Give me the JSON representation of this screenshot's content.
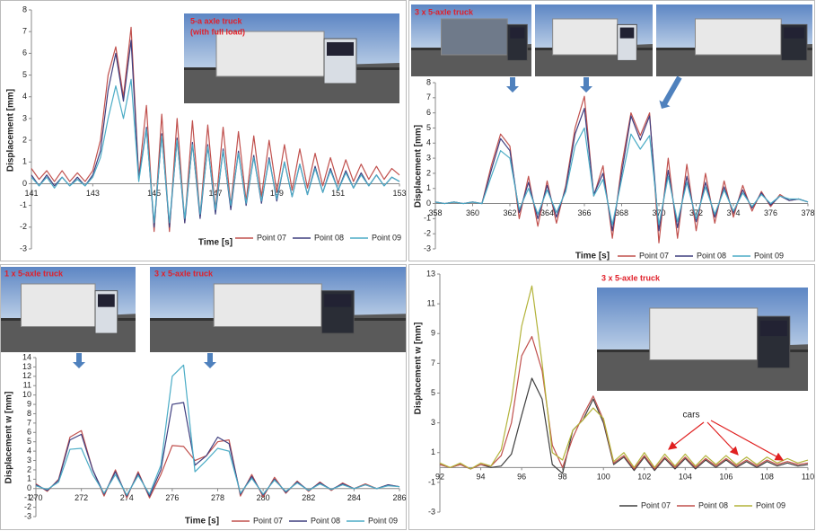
{
  "chart_data": [
    {
      "type": "line",
      "photo_captions": [
        "5-a axle truck",
        "(with full load)"
      ],
      "y_label": "Displacement [mm]",
      "x_label": "Time [s]",
      "xlim": [
        141,
        153
      ],
      "xticks": [
        141,
        143,
        145,
        147,
        149,
        151,
        153
      ],
      "ylim": [
        -3,
        8
      ],
      "yticks": [
        -3,
        -2,
        -1,
        0,
        1,
        2,
        3,
        4,
        5,
        6,
        7,
        8
      ],
      "x": [
        141,
        141.25,
        141.5,
        141.75,
        142,
        142.25,
        142.5,
        142.75,
        143,
        143.25,
        143.5,
        143.75,
        144,
        144.25,
        144.5,
        144.75,
        145,
        145.25,
        145.5,
        145.75,
        146,
        146.25,
        146.5,
        146.75,
        147,
        147.25,
        147.5,
        147.75,
        148,
        148.25,
        148.5,
        148.75,
        149,
        149.25,
        149.5,
        149.75,
        150,
        150.25,
        150.5,
        150.75,
        151,
        151.25,
        151.5,
        151.75,
        152,
        152.25,
        152.5,
        152.75,
        153
      ],
      "series": [
        {
          "name": "Point 07",
          "color": "#c0504d",
          "values": [
            0.7,
            0.2,
            0.6,
            0.1,
            0.6,
            0.1,
            0.5,
            0.1,
            0.6,
            2.0,
            5.0,
            6.3,
            4.0,
            7.2,
            0.3,
            3.6,
            -2.2,
            3.2,
            -2.2,
            3.0,
            -1.8,
            2.9,
            -1.5,
            2.7,
            -1.2,
            2.6,
            -1.0,
            2.4,
            -0.8,
            2.2,
            -0.6,
            2.0,
            -0.4,
            1.8,
            -0.3,
            1.6,
            -0.2,
            1.4,
            -0.1,
            1.2,
            0.0,
            1.1,
            0.1,
            0.9,
            0.2,
            0.8,
            0.2,
            0.7,
            0.4
          ]
        },
        {
          "name": "Point 08",
          "color": "#3f3f7f",
          "values": [
            0.4,
            -0.1,
            0.4,
            -0.1,
            0.3,
            -0.1,
            0.3,
            -0.1,
            0.4,
            1.5,
            4.3,
            6.0,
            3.8,
            6.6,
            0.2,
            2.6,
            -2.0,
            2.3,
            -2.0,
            2.1,
            -1.8,
            1.9,
            -1.6,
            1.8,
            -1.4,
            1.6,
            -1.2,
            1.5,
            -1.0,
            1.3,
            -0.9,
            1.2,
            -0.8,
            1.0,
            -0.6,
            0.9,
            -0.5,
            0.8,
            -0.4,
            0.7,
            -0.3,
            0.6,
            -0.2,
            0.5,
            -0.1,
            0.4,
            -0.1,
            0.3,
            0.1
          ]
        },
        {
          "name": "Point 09",
          "color": "#4bacc6",
          "values": [
            0.3,
            -0.1,
            0.3,
            -0.2,
            0.3,
            -0.1,
            0.2,
            -0.1,
            0.3,
            1.2,
            3.0,
            4.5,
            3.0,
            4.8,
            0.1,
            2.5,
            -1.8,
            2.2,
            -1.8,
            2.0,
            -1.6,
            1.8,
            -1.4,
            1.7,
            -1.2,
            1.5,
            -1.0,
            1.4,
            -0.9,
            1.2,
            -0.8,
            1.1,
            -0.7,
            1.0,
            -0.6,
            0.9,
            -0.5,
            0.7,
            -0.4,
            0.6,
            -0.3,
            0.5,
            -0.2,
            0.4,
            -0.1,
            0.4,
            -0.1,
            0.3,
            0.1
          ]
        }
      ]
    },
    {
      "type": "line",
      "photo_captions": [
        "3 x 5-axle truck"
      ],
      "y_label": "Displacement [mm]",
      "x_label": "Time [s]",
      "xlim": [
        358,
        378
      ],
      "xticks": [
        358,
        360,
        362,
        364,
        366,
        368,
        370,
        372,
        374,
        376,
        378
      ],
      "ylim": [
        -3,
        8
      ],
      "yticks": [
        -3,
        -2,
        -1,
        0,
        1,
        2,
        3,
        4,
        5,
        6,
        7,
        8
      ],
      "x": [
        358,
        358.5,
        359,
        359.5,
        360,
        360.5,
        361,
        361.5,
        362,
        362.5,
        363,
        363.5,
        364,
        364.5,
        365,
        365.5,
        366,
        366.5,
        367,
        367.5,
        368,
        368.5,
        369,
        369.5,
        370,
        370.5,
        371,
        371.5,
        372,
        372.5,
        373,
        373.5,
        374,
        374.5,
        375,
        375.5,
        376,
        376.5,
        377,
        377.5,
        378
      ],
      "series": [
        {
          "name": "Point 07",
          "color": "#c0504d",
          "values": [
            0.1,
            0.0,
            0.1,
            0.0,
            0.1,
            0.0,
            2.5,
            4.6,
            3.8,
            -1.0,
            1.8,
            -1.5,
            1.5,
            -1.3,
            1.2,
            5.0,
            7.1,
            0.5,
            2.5,
            -2.3,
            2.5,
            6.0,
            4.5,
            6.0,
            -2.6,
            3.0,
            -2.3,
            2.6,
            -1.8,
            2.0,
            -1.3,
            1.5,
            -0.9,
            1.2,
            -0.5,
            0.8,
            -0.2,
            0.6,
            0.2,
            0.3,
            0.1
          ]
        },
        {
          "name": "Point 08",
          "color": "#3f3f7f",
          "values": [
            0.1,
            0.0,
            0.1,
            0.0,
            0.1,
            0.0,
            2.2,
            4.3,
            3.5,
            -0.6,
            1.4,
            -1.0,
            1.2,
            -0.9,
            1.0,
            4.6,
            6.3,
            0.6,
            2.0,
            -1.8,
            2.0,
            5.8,
            4.2,
            5.8,
            -1.8,
            2.2,
            -1.6,
            1.8,
            -1.2,
            1.4,
            -0.9,
            1.1,
            -0.6,
            0.9,
            -0.3,
            0.7,
            -0.1,
            0.5,
            0.2,
            0.3,
            0.1
          ]
        },
        {
          "name": "Point 09",
          "color": "#4bacc6",
          "values": [
            0.1,
            0.0,
            0.1,
            0.0,
            0.1,
            0.0,
            1.8,
            3.5,
            3.0,
            -0.4,
            1.0,
            -0.7,
            0.9,
            -0.6,
            0.8,
            3.8,
            5.0,
            0.5,
            1.6,
            -1.4,
            1.6,
            4.6,
            3.6,
            4.5,
            -1.4,
            1.8,
            -1.2,
            1.4,
            -1.0,
            1.1,
            -0.7,
            0.9,
            -0.5,
            0.7,
            -0.2,
            0.6,
            0.0,
            0.5,
            0.3,
            0.3,
            0.1
          ]
        }
      ]
    },
    {
      "type": "line",
      "photo_captions": [
        "1 x 5-axle truck",
        "3 x 5-axle truck"
      ],
      "y_label": "Displacement w [mm]",
      "x_label": "Time [s]",
      "xlim": [
        270,
        286
      ],
      "xticks": [
        270,
        272,
        274,
        276,
        278,
        280,
        282,
        284,
        286
      ],
      "ylim": [
        -3,
        14
      ],
      "yticks": [
        -3,
        -2,
        -1,
        0,
        1,
        2,
        3,
        4,
        5,
        6,
        7,
        8,
        9,
        10,
        11,
        12,
        13,
        14
      ],
      "x": [
        270,
        270.5,
        271,
        271.5,
        272,
        272.5,
        273,
        273.5,
        274,
        274.5,
        275,
        275.5,
        276,
        276.5,
        277,
        277.5,
        278,
        278.5,
        279,
        279.5,
        280,
        280.5,
        281,
        281.5,
        282,
        282.5,
        283,
        283.5,
        284,
        284.5,
        285,
        285.5,
        286
      ],
      "series": [
        {
          "name": "Point 07",
          "color": "#c0504d",
          "values": [
            0.5,
            -0.3,
            1.0,
            5.5,
            6.2,
            2.0,
            -0.8,
            2.0,
            -1.0,
            1.8,
            -1.0,
            1.5,
            4.6,
            4.5,
            3.0,
            3.5,
            5.0,
            5.2,
            -0.8,
            1.5,
            -0.9,
            1.2,
            -0.5,
            0.8,
            -0.3,
            0.7,
            -0.2,
            0.6,
            0.0,
            0.5,
            0.0,
            0.4,
            0.2
          ]
        },
        {
          "name": "Point 08",
          "color": "#3f3f7f",
          "values": [
            0.4,
            -0.2,
            0.9,
            5.2,
            5.8,
            2.0,
            -0.6,
            1.8,
            -0.8,
            1.6,
            -0.8,
            2.0,
            9.0,
            9.2,
            2.5,
            3.5,
            5.5,
            4.8,
            -0.6,
            1.3,
            -0.7,
            1.0,
            -0.4,
            0.7,
            -0.2,
            0.6,
            -0.1,
            0.5,
            0.0,
            0.4,
            0.0,
            0.4,
            0.2
          ]
        },
        {
          "name": "Point 09",
          "color": "#4bacc6",
          "values": [
            0.3,
            -0.1,
            0.7,
            4.2,
            4.3,
            1.5,
            -0.5,
            1.5,
            -0.7,
            1.4,
            -0.6,
            2.5,
            12.0,
            13.2,
            1.8,
            3.0,
            4.3,
            4.0,
            -0.5,
            1.1,
            -0.6,
            0.9,
            -0.3,
            0.6,
            -0.2,
            0.5,
            -0.1,
            0.4,
            0.0,
            0.4,
            0.0,
            0.3,
            0.2
          ]
        }
      ]
    },
    {
      "type": "line",
      "photo_captions": [
        "3 x 5-axle truck"
      ],
      "annotations": [
        "cars"
      ],
      "y_label": "Displacement w [mm]",
      "xlim": [
        92,
        110
      ],
      "xticks": [
        92,
        94,
        96,
        98,
        100,
        102,
        104,
        106,
        108,
        110
      ],
      "ylim": [
        -3,
        13
      ],
      "yticks": [
        -3,
        -1,
        1,
        3,
        5,
        7,
        9,
        11,
        13
      ],
      "x": [
        92,
        92.5,
        93,
        93.5,
        94,
        94.5,
        95,
        95.5,
        96,
        96.5,
        97,
        97.5,
        98,
        98.5,
        99,
        99.5,
        100,
        100.5,
        101,
        101.5,
        102,
        102.5,
        103,
        103.5,
        104,
        104.5,
        105,
        105.5,
        106,
        106.5,
        107,
        107.5,
        108,
        108.5,
        109,
        109.5,
        110
      ],
      "series": [
        {
          "name": "Point 07",
          "color": "#404040",
          "values": [
            0.2,
            0.0,
            0.2,
            -0.1,
            0.2,
            0.0,
            0.1,
            0.9,
            3.5,
            6.0,
            4.6,
            0.2,
            -0.4,
            2.5,
            3.2,
            4.6,
            3.0,
            0.2,
            0.7,
            -0.2,
            0.7,
            -0.2,
            0.6,
            -0.1,
            0.6,
            -0.1,
            0.5,
            0.0,
            0.5,
            0.0,
            0.4,
            0.0,
            0.4,
            0.1,
            0.3,
            0.1,
            0.2
          ]
        },
        {
          "name": "Point 08",
          "color": "#c0504d",
          "values": [
            0.2,
            0.0,
            0.2,
            -0.1,
            0.2,
            0.1,
            0.8,
            3.0,
            7.5,
            8.8,
            6.5,
            1.5,
            0.0,
            2.0,
            3.5,
            4.8,
            3.2,
            0.3,
            0.8,
            -0.1,
            0.8,
            -0.1,
            0.7,
            0.0,
            0.7,
            0.0,
            0.6,
            0.1,
            0.6,
            0.1,
            0.5,
            0.1,
            0.5,
            0.2,
            0.4,
            0.2,
            0.3
          ]
        },
        {
          "name": "Point 09",
          "color": "#b3b33a",
          "values": [
            0.3,
            0.0,
            0.3,
            -0.1,
            0.3,
            0.1,
            1.2,
            4.5,
            9.5,
            12.2,
            7.0,
            1.0,
            0.5,
            2.5,
            3.2,
            4.0,
            3.3,
            0.4,
            1.0,
            0.0,
            1.0,
            0.0,
            0.9,
            0.1,
            0.9,
            0.1,
            0.8,
            0.2,
            0.8,
            0.2,
            0.7,
            0.2,
            0.7,
            0.3,
            0.6,
            0.3,
            0.5
          ]
        }
      ]
    }
  ]
}
